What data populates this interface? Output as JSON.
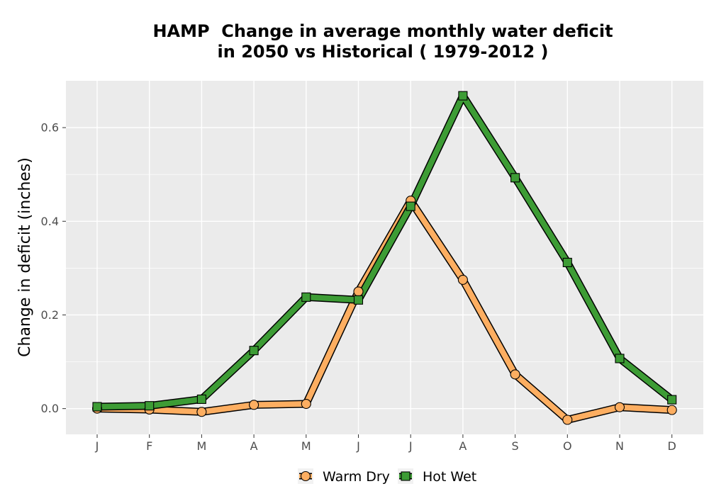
{
  "chart_data": {
    "type": "line",
    "title_lines": [
      "HAMP  Change in average monthly water deficit",
      "in 2050 vs Historical ( 1979-2012 )"
    ],
    "xlabel": "",
    "ylabel": "Change in deficit (inches)",
    "categories": [
      "J",
      "F",
      "M",
      "A",
      "M",
      "J",
      "J",
      "A",
      "S",
      "O",
      "N",
      "D"
    ],
    "ylim": [
      -0.055,
      0.7
    ],
    "yticks": [
      0.0,
      0.2,
      0.4,
      0.6
    ],
    "ytick_labels": [
      "0.0",
      "0.2",
      "0.4",
      "0.6"
    ],
    "grid": true,
    "legend_position": "bottom",
    "series": [
      {
        "name": "Warm Dry",
        "marker": "circle",
        "color": "#fdae61",
        "values": [
          0.0,
          -0.002,
          -0.007,
          0.008,
          0.01,
          0.25,
          0.444,
          0.275,
          0.073,
          -0.024,
          0.003,
          -0.003
        ]
      },
      {
        "name": "Hot Wet",
        "marker": "square",
        "color": "#3d9c35",
        "values": [
          0.004,
          0.006,
          0.02,
          0.124,
          0.238,
          0.232,
          0.432,
          0.668,
          0.493,
          0.312,
          0.107,
          0.019
        ]
      }
    ]
  }
}
